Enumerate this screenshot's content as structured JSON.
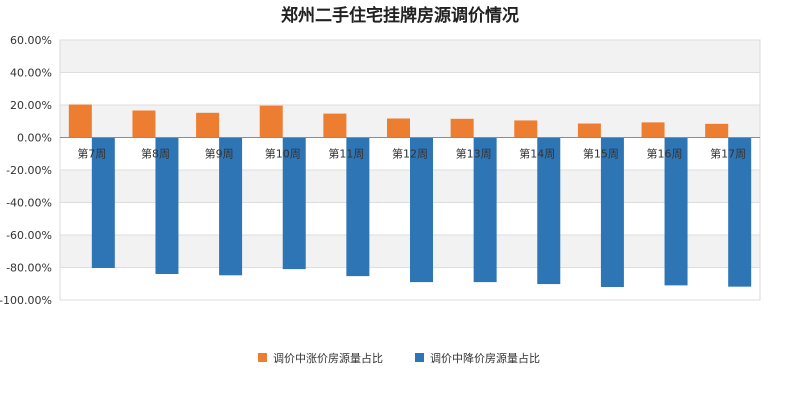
{
  "chart_data": {
    "type": "bar",
    "title": "郑州二手住宅挂牌房源调价情况",
    "xlabel": "",
    "ylabel": "",
    "categories": [
      "第7周",
      "第8周",
      "第9周",
      "第10周",
      "第11周",
      "第12周",
      "第13周",
      "第14周",
      "第15周",
      "第16周",
      "第17周"
    ],
    "series": [
      {
        "name": "调价中涨价房源量占比",
        "color": "#ED7D31",
        "values": [
          20.3,
          16.6,
          15.2,
          19.6,
          14.7,
          11.7,
          11.5,
          10.5,
          8.6,
          9.3,
          8.4
        ]
      },
      {
        "name": "调价中降价房源量占比",
        "color": "#2E75B6",
        "values": [
          -80.3,
          -84.0,
          -84.8,
          -81.0,
          -85.3,
          -89.0,
          -89.0,
          -90.2,
          -92.0,
          -91.0,
          -91.8
        ]
      }
    ],
    "ylim": [
      -100,
      60
    ],
    "yticks": [
      "60.00%",
      "40.00%",
      "20.00%",
      "0.00%",
      "-20.00%",
      "-40.00%",
      "-60.00%",
      "-80.00%",
      "-100.00%"
    ],
    "grid": true,
    "legend_position": "bottom"
  }
}
